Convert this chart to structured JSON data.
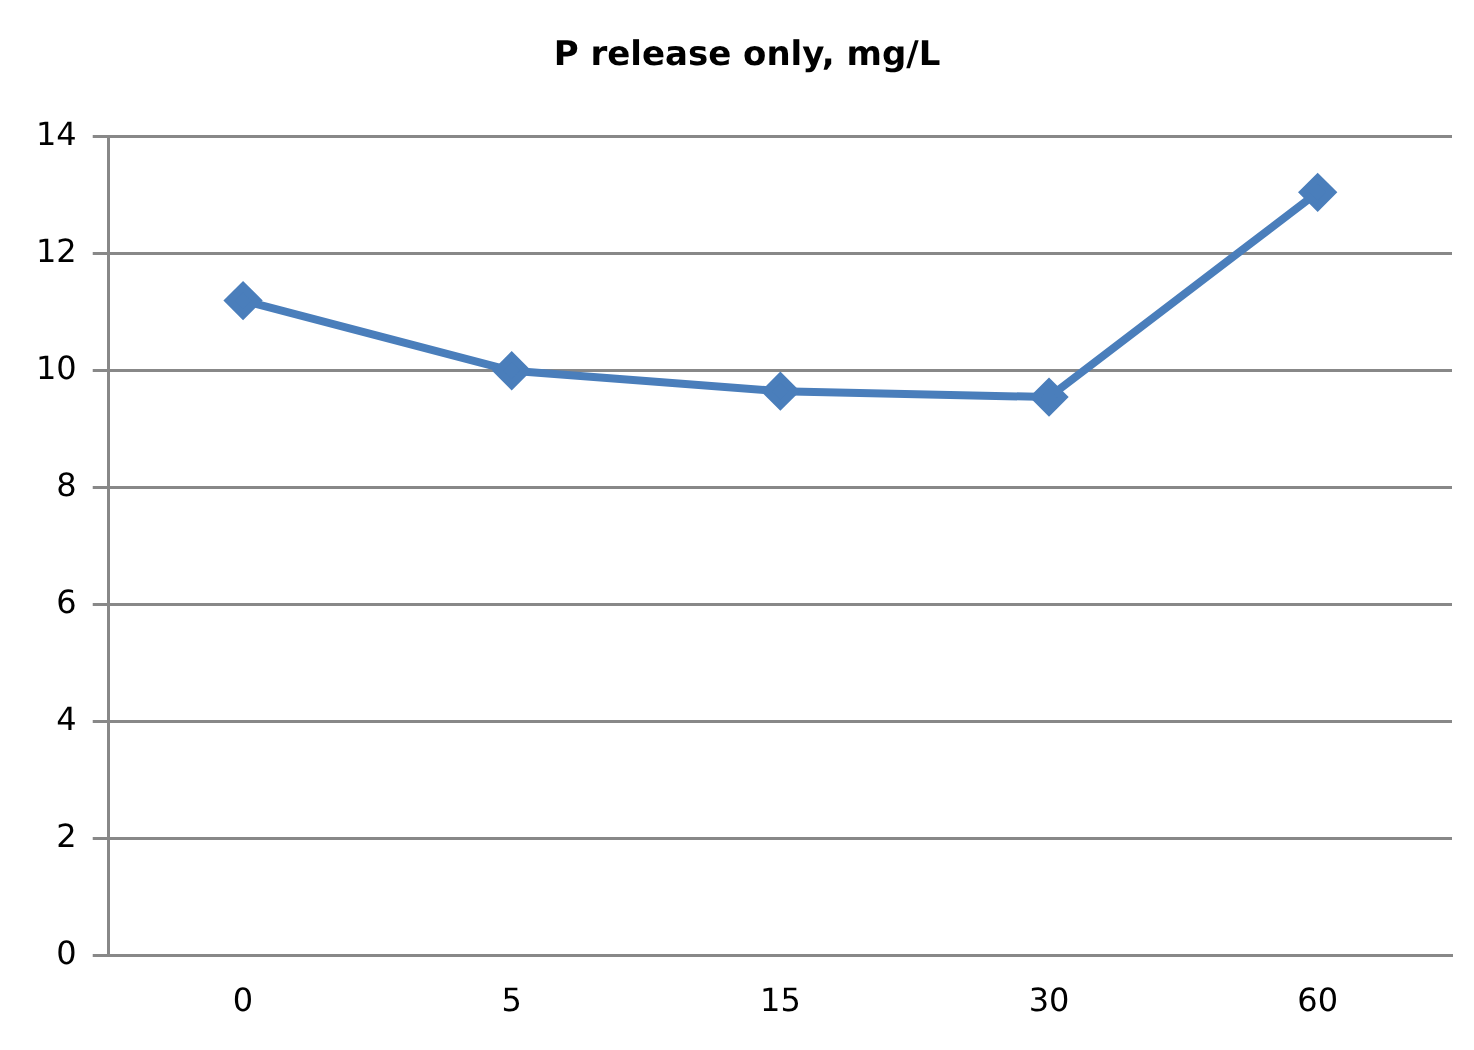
{
  "chart_data": {
    "type": "line",
    "title": "P release only, mg/L",
    "categories": [
      "0",
      "5",
      "15",
      "30",
      "60"
    ],
    "series": [
      {
        "color": "#4a7ebb",
        "values": [
          11.2,
          10.0,
          9.65,
          9.55,
          13.05
        ]
      }
    ],
    "ylim": [
      0,
      14
    ],
    "yticks": [
      0,
      2,
      4,
      6,
      8,
      10,
      12,
      14
    ],
    "grid": "y",
    "legend": false,
    "marker": "diamond",
    "line_style": "solid"
  }
}
